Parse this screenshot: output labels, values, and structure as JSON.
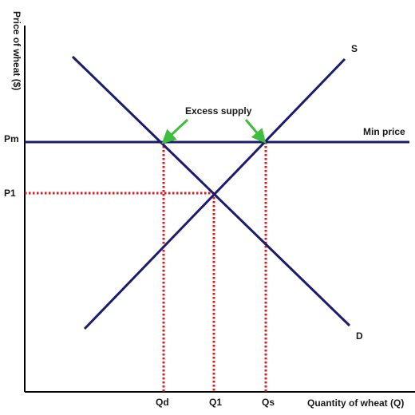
{
  "axes": {
    "y_title": "Price of wheat ($)",
    "x_title": "Quantity of wheat (Q)"
  },
  "price_levels": {
    "pm": "Pm",
    "p1": "P1"
  },
  "quantity_levels": {
    "qd": "Qd",
    "q1": "Q1",
    "qs": "Qs"
  },
  "curves": {
    "supply": "S",
    "demand": "D",
    "min_price": "Min price"
  },
  "annotation": {
    "excess_supply": "Excess supply"
  },
  "colors": {
    "curve": "#1c1c6e",
    "axis": "#000000",
    "dotted_guides": "#e0191c",
    "arrow": "#3dbf3d"
  }
}
